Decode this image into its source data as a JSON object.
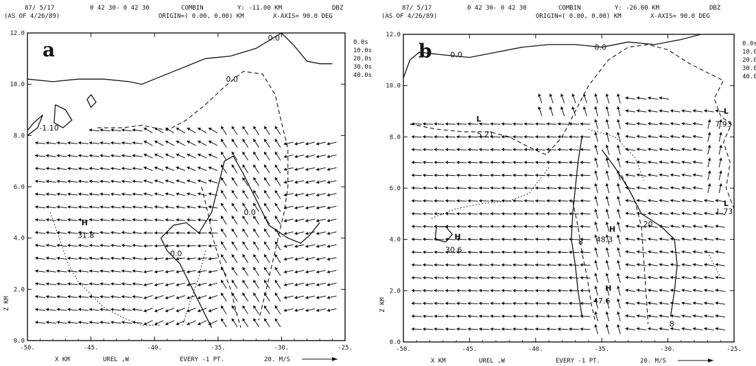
{
  "panels": [
    {
      "id": "a",
      "label": "a",
      "header": {
        "line1_left": "87/ 5/17",
        "line1_time": "0 42 30- 0 42 30",
        "line1_mode": "COMBIN",
        "line1_y": "Y: -11.00 KM",
        "line1_units": "DBZ",
        "line2_left": "(AS OF 4/26/89)",
        "line2_origin": "ORIGIN=( 0.00, 0.00) KM",
        "line2_axis": "X-AXIS= 90.0 DEG"
      },
      "footer": {
        "xlabel": "X KM",
        "field": "UREL ,W",
        "every": "EVERY -1 PT.",
        "scale": "20. M/S"
      },
      "ylabel": "Z KM",
      "legend_levels": [
        "0.0s",
        "10.0s",
        "20.0s",
        "30.0s",
        "40.0s"
      ],
      "annotations": [
        {
          "text": "-1.10",
          "x": -48.3,
          "y": 8.2
        },
        {
          "text": "H",
          "x": -45.5,
          "y": 4.5
        },
        {
          "text": "31.8",
          "x": -45.4,
          "y": 4.0
        },
        {
          "text": "0.0",
          "x": -30.6,
          "y": 11.7
        },
        {
          "text": "0.0",
          "x": -33.9,
          "y": 10.1
        },
        {
          "text": "0.0",
          "x": -38.3,
          "y": 3.3
        },
        {
          "text": "0.0",
          "x": -32.5,
          "y": 4.9
        }
      ]
    },
    {
      "id": "b",
      "label": "b",
      "header": {
        "line1_left": "87/ 5/17",
        "line1_time": "0 42 30- 0 42 30",
        "line1_mode": "COMBIN",
        "line1_y": "Y: -26.00 KM",
        "line1_units": "DBZ",
        "line2_left": "(AS OF 4/26/89)",
        "line2_origin": "ORIGIN=( 0.00, 0.00) KM",
        "line2_axis": "X-AXIS= 90.0 DEG"
      },
      "footer": {
        "xlabel": "X KM",
        "field": "UREL ,W",
        "every": "EVERY -1 PT.",
        "scale": "20. M/S"
      },
      "ylabel": "Z KM",
      "legend_levels": [
        "0.0s",
        "10.0s",
        "20.0s",
        "30.0s",
        "40.0s"
      ],
      "annotations": [
        {
          "text": "L",
          "x": -44.3,
          "y": 8.6
        },
        {
          "text": "5.21",
          "x": -43.8,
          "y": 8.0
        },
        {
          "text": "L",
          "x": -25.6,
          "y": 8.9
        },
        {
          "text": "7.93",
          "x": -25.8,
          "y": 8.4
        },
        {
          "text": "L",
          "x": -25.6,
          "y": 5.3
        },
        {
          "text": "L.73",
          "x": -25.7,
          "y": 5.0
        },
        {
          "text": "H",
          "x": -45.9,
          "y": 4.0
        },
        {
          "text": "30.6",
          "x": -46.2,
          "y": 3.5
        },
        {
          "text": "H",
          "x": -34.2,
          "y": 4.3
        },
        {
          "text": "48.3",
          "x": -34.8,
          "y": 3.9
        },
        {
          "text": "20",
          "x": -31.5,
          "y": 4.5
        },
        {
          "text": "H",
          "x": -34.5,
          "y": 2.0
        },
        {
          "text": "47.6",
          "x": -35.0,
          "y": 1.5
        },
        {
          "text": "8",
          "x": -36.6,
          "y": 3.8
        },
        {
          "text": "8",
          "x": -29.7,
          "y": 0.6
        },
        {
          "text": "0.0",
          "x": -46.0,
          "y": 11.1
        },
        {
          "text": "0.0",
          "x": -35.1,
          "y": 11.4
        }
      ]
    }
  ],
  "chart_data": [
    {
      "type": "vector field cross-section",
      "title": "",
      "xlabel": "X KM",
      "ylabel": "Z KM",
      "xlim": [
        -50,
        -25
      ],
      "ylim": [
        0,
        12
      ],
      "x_ticks": [
        "-50.",
        "-45.",
        "-40.",
        "-35.",
        "-30.",
        "-25."
      ],
      "y_ticks": [
        "0.0",
        "2.0",
        "4.0",
        "6.0",
        "8.0",
        "10.0",
        "12.0"
      ],
      "contours": [
        {
          "style": "solid",
          "points": [
            [
              -50,
              10.2
            ],
            [
              -48,
              10.1
            ],
            [
              -46,
              10.2
            ],
            [
              -44,
              10.2
            ],
            [
              -42,
              10.1
            ],
            [
              -41,
              10.0
            ],
            [
              -40,
              10.2
            ],
            [
              -38,
              10.6
            ],
            [
              -36,
              11.0
            ],
            [
              -34,
              11.1
            ],
            [
              -32,
              11.4
            ],
            [
              -31,
              11.7
            ],
            [
              -30,
              12.0
            ],
            [
              -29,
              11.5
            ],
            [
              -28,
              10.9
            ],
            [
              -27,
              10.8
            ],
            [
              -26,
              10.8
            ]
          ]
        },
        {
          "style": "solid",
          "points": [
            [
              -50,
              8.2
            ],
            [
              -49.5,
              8.5
            ],
            [
              -48.8,
              8.8
            ],
            [
              -49.2,
              8.3
            ],
            [
              -50,
              8.0
            ]
          ]
        },
        {
          "style": "solid",
          "points": [
            [
              -47.8,
              9.2
            ],
            [
              -47.0,
              9.0
            ],
            [
              -46.5,
              8.6
            ],
            [
              -47.2,
              8.3
            ],
            [
              -47.9,
              8.5
            ],
            [
              -47.8,
              9.2
            ]
          ]
        },
        {
          "style": "solid",
          "points": [
            [
              -45.0,
              9.6
            ],
            [
              -44.6,
              9.3
            ],
            [
              -45.0,
              9.1
            ],
            [
              -45.3,
              9.4
            ],
            [
              -45.0,
              9.6
            ]
          ]
        },
        {
          "style": "solid",
          "points": [
            [
              -39.5,
              4.0
            ],
            [
              -38.5,
              4.5
            ],
            [
              -37.5,
              4.6
            ],
            [
              -36.5,
              4.2
            ],
            [
              -35.5,
              5.0
            ],
            [
              -35.0,
              6.0
            ],
            [
              -34.5,
              7.0
            ],
            [
              -33.8,
              7.2
            ],
            [
              -33.0,
              6.5
            ],
            [
              -32.0,
              5.5
            ],
            [
              -31.0,
              4.5
            ],
            [
              -29.5,
              4.0
            ],
            [
              -28.5,
              3.8
            ],
            [
              -27.8,
              4.1
            ],
            [
              -27.0,
              4.6
            ]
          ]
        },
        {
          "style": "solid",
          "points": [
            [
              -39.5,
              4.0
            ],
            [
              -39.0,
              3.5
            ],
            [
              -38.0,
              3.0
            ],
            [
              -37.5,
              2.5
            ],
            [
              -37.0,
              2.0
            ],
            [
              -36.5,
              1.5
            ],
            [
              -36.0,
              1.0
            ],
            [
              -35.5,
              0.5
            ]
          ]
        },
        {
          "style": "dashed",
          "points": [
            [
              -44.5,
              8.3
            ],
            [
              -42.5,
              8.3
            ],
            [
              -41.0,
              8.4
            ],
            [
              -39.0,
              8.2
            ],
            [
              -37.5,
              8.6
            ],
            [
              -36.0,
              9.2
            ],
            [
              -34.5,
              9.9
            ],
            [
              -33.0,
              10.5
            ],
            [
              -31.5,
              10.4
            ],
            [
              -30.5,
              9.6
            ],
            [
              -30.0,
              8.5
            ],
            [
              -29.5,
              7.5
            ],
            [
              -29.5,
              6.0
            ],
            [
              -29.8,
              5.0
            ],
            [
              -30.5,
              3.5
            ],
            [
              -31.2,
              2.0
            ],
            [
              -31.8,
              0.8
            ]
          ]
        },
        {
          "style": "dashed",
          "points": [
            [
              -36.3,
              6.0
            ],
            [
              -35.8,
              5.0
            ],
            [
              -35.4,
              4.0
            ],
            [
              -34.8,
              3.0
            ],
            [
              -34.0,
              2.0
            ],
            [
              -33.5,
              1.0
            ],
            [
              -33.2,
              0.5
            ]
          ]
        },
        {
          "style": "dotted",
          "points": [
            [
              -48.2,
              5.0
            ],
            [
              -47.5,
              4.0
            ],
            [
              -46.8,
              3.0
            ],
            [
              -46.0,
              2.3
            ],
            [
              -45.0,
              1.8
            ],
            [
              -44.0,
              1.3
            ],
            [
              -42.5,
              0.9
            ],
            [
              -41.0,
              0.6
            ],
            [
              -39.5,
              0.6
            ]
          ]
        },
        {
          "style": "dotted",
          "points": [
            [
              -36.0,
              3.5
            ],
            [
              -36.5,
              2.5
            ],
            [
              -37.2,
              1.5
            ],
            [
              -37.8,
              0.6
            ]
          ]
        }
      ],
      "vector_field": {
        "x_start": -49,
        "x_end": -26,
        "dx": 0.85,
        "z_start": 0.7,
        "z_end": 8.6,
        "dz": 0.5,
        "scale_ms": 20
      }
    },
    {
      "type": "vector field cross-section",
      "title": "",
      "xlabel": "X KM",
      "ylabel": "Z KM",
      "xlim": [
        -50,
        -25
      ],
      "ylim": [
        0,
        12
      ],
      "x_ticks": [
        "-50.",
        "-45.",
        "-40.",
        "-35.",
        "-30.",
        "-25."
      ],
      "y_ticks": [
        "0.0",
        "2.0",
        "4.0",
        "6.0",
        "8.0",
        "10.0",
        "12.0"
      ],
      "contours": [
        {
          "style": "solid",
          "points": [
            [
              -50,
              10.3
            ],
            [
              -49.5,
              11.0
            ],
            [
              -48.8,
              11.3
            ],
            [
              -47,
              11.2
            ],
            [
              -45,
              11.1
            ],
            [
              -43,
              11.3
            ],
            [
              -41,
              11.5
            ],
            [
              -39,
              11.6
            ],
            [
              -37,
              11.6
            ],
            [
              -35,
              11.5
            ],
            [
              -33,
              11.7
            ],
            [
              -31,
              11.6
            ],
            [
              -29,
              11.8
            ],
            [
              -27.5,
              12.0
            ]
          ]
        },
        {
          "style": "dashed",
          "points": [
            [
              -49.5,
              8.5
            ],
            [
              -47.5,
              8.3
            ],
            [
              -45.5,
              8.2
            ],
            [
              -43.5,
              8.2
            ],
            [
              -42,
              8.0
            ],
            [
              -40.5,
              7.6
            ],
            [
              -39.2,
              7.3
            ],
            [
              -38.0,
              8.0
            ],
            [
              -37.0,
              9.0
            ],
            [
              -36.0,
              10.0
            ],
            [
              -34.5,
              11.0
            ],
            [
              -33.0,
              11.5
            ],
            [
              -31.5,
              11.6
            ],
            [
              -30.0,
              11.4
            ],
            [
              -28.5,
              10.9
            ],
            [
              -27.0,
              10.5
            ],
            [
              -25.8,
              10.2
            ],
            [
              -26.5,
              9.5
            ],
            [
              -26.0,
              8.8
            ],
            [
              -25.2,
              8.5
            ],
            [
              -25.8,
              7.8
            ],
            [
              -25.3,
              7.0
            ],
            [
              -25.6,
              6.0
            ],
            [
              -25.0,
              5.2
            ]
          ]
        },
        {
          "style": "dashed",
          "points": [
            [
              -37.2,
              5.5
            ],
            [
              -36.8,
              4.5
            ],
            [
              -36.5,
              3.5
            ],
            [
              -36.1,
              2.5
            ],
            [
              -35.8,
              1.5
            ],
            [
              -35.5,
              0.8
            ]
          ]
        },
        {
          "style": "dashed",
          "points": [
            [
              -33.5,
              6.5
            ],
            [
              -32.5,
              5.5
            ],
            [
              -32.0,
              4.5
            ],
            [
              -31.8,
              3.0
            ],
            [
              -31.6,
              1.5
            ],
            [
              -31.5,
              0.7
            ]
          ]
        },
        {
          "style": "solid",
          "points": [
            [
              -36.5,
              8.0
            ],
            [
              -36.8,
              7.0
            ],
            [
              -37.0,
              6.0
            ],
            [
              -37.2,
              5.0
            ],
            [
              -37.3,
              4.0
            ],
            [
              -37.0,
              3.0
            ],
            [
              -36.8,
              2.0
            ],
            [
              -36.5,
              1.0
            ]
          ]
        },
        {
          "style": "solid",
          "points": [
            [
              -35.0,
              7.5
            ],
            [
              -34.0,
              6.8
            ],
            [
              -33.0,
              6.0
            ],
            [
              -32.0,
              5.0
            ],
            [
              -30.5,
              4.5
            ],
            [
              -29.5,
              4.0
            ],
            [
              -29.3,
              3.0
            ],
            [
              -29.5,
              2.0
            ],
            [
              -29.8,
              1.0
            ]
          ]
        },
        {
          "style": "solid",
          "points": [
            [
              -47.5,
              4.5
            ],
            [
              -46.8,
              4.5
            ],
            [
              -46.3,
              4.2
            ],
            [
              -46.8,
              3.9
            ],
            [
              -47.6,
              4.0
            ],
            [
              -47.5,
              4.5
            ]
          ]
        },
        {
          "style": "dotted",
          "points": [
            [
              -39.0,
              6.8
            ],
            [
              -40.5,
              5.8
            ],
            [
              -42.0,
              5.5
            ],
            [
              -44.0,
              5.4
            ],
            [
              -46.0,
              5.2
            ],
            [
              -48.0,
              4.8
            ]
          ]
        },
        {
          "style": "dotted",
          "points": [
            [
              -36.0,
              8.3
            ],
            [
              -34.0,
              8.0
            ],
            [
              -32.5,
              7.2
            ],
            [
              -31.8,
              6.3
            ]
          ]
        },
        {
          "style": "dotted",
          "points": [
            [
              -27.0,
              3.5
            ],
            [
              -26.5,
              3.0
            ],
            [
              -26.0,
              2.5
            ]
          ]
        }
      ],
      "vector_field": {
        "x_start": -49,
        "x_end": -26,
        "dx": 0.85,
        "z_start": 0.5,
        "z_end": 9.5,
        "dz": 0.5,
        "scale_ms": 20
      }
    }
  ]
}
